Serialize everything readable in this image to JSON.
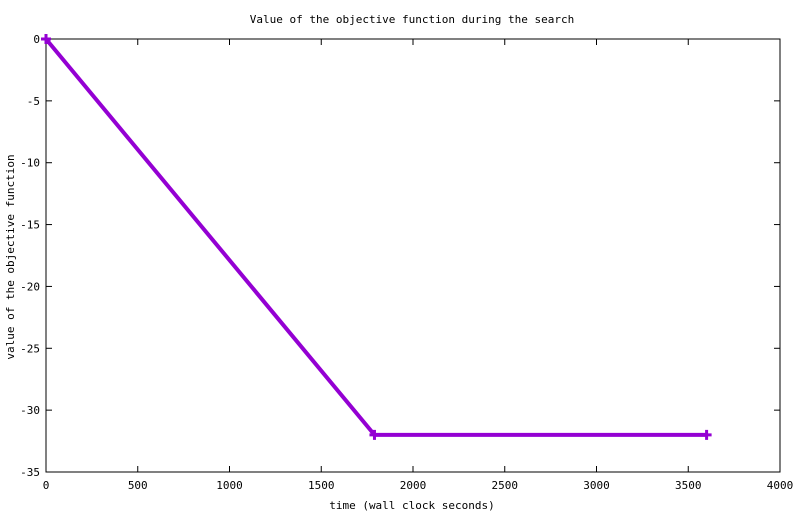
{
  "chart_data": {
    "type": "line",
    "title": "Value of the objective function during the search",
    "xlabel": "time (wall clock seconds)",
    "ylabel": "value of the objective function",
    "xlim": [
      0,
      4000
    ],
    "ylim": [
      -35,
      0
    ],
    "xticks": [
      0,
      500,
      1000,
      1500,
      2000,
      2500,
      3000,
      3500,
      4000
    ],
    "yticks": [
      0,
      -5,
      -10,
      -15,
      -20,
      -25,
      -30,
      -35
    ],
    "grid": false,
    "legend": "none",
    "series": [
      {
        "color": "#9400d3",
        "marker": "plus",
        "x": [
          0,
          1790,
          3600
        ],
        "y": [
          0,
          -32,
          -32
        ]
      }
    ]
  }
}
